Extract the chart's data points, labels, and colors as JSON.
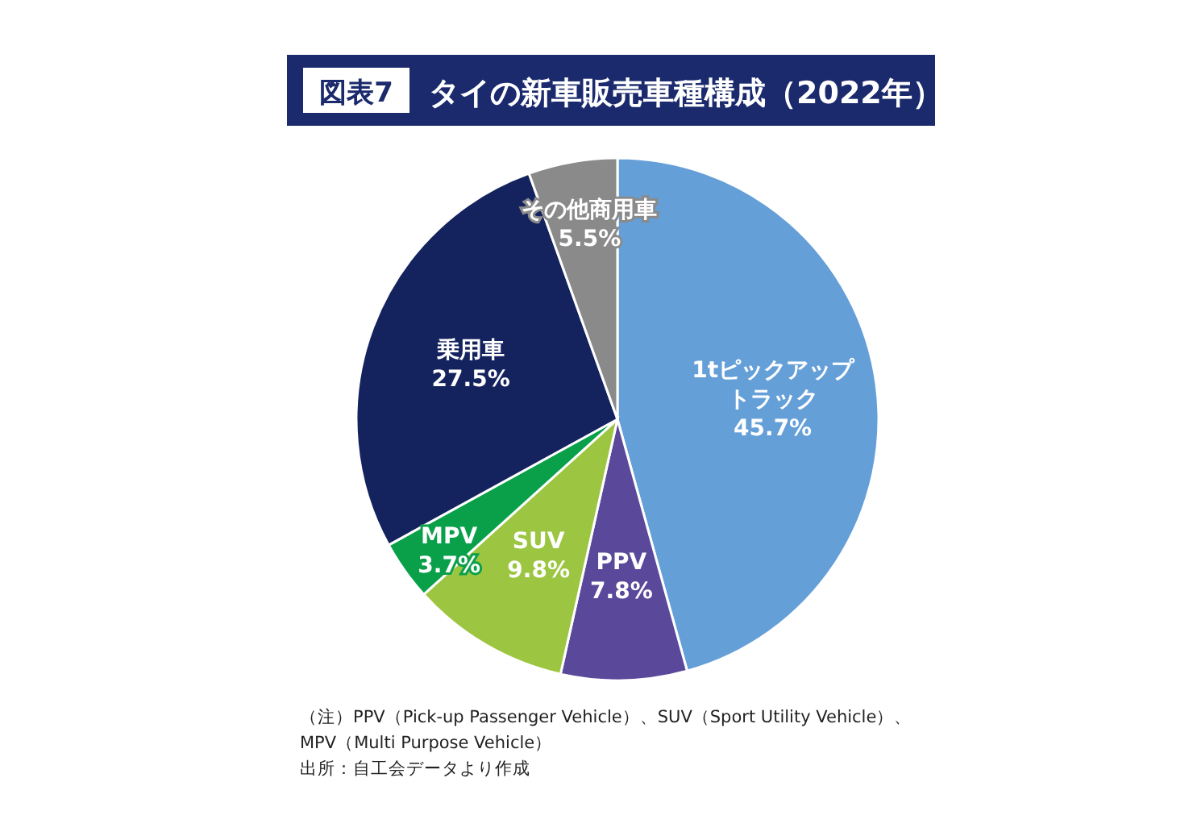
{
  "chart_data": {
    "type": "pie",
    "title": "タイの新車販売車種構成（2022年）",
    "categories": [
      "1tピックアップトラック",
      "PPV",
      "SUV",
      "MPV",
      "乗用車",
      "その他商用車"
    ],
    "values": [
      45.7,
      7.8,
      9.8,
      3.7,
      27.5,
      5.5
    ],
    "colors": [
      "#659fd8",
      "#5a489a",
      "#9cc641",
      "#0aa04a",
      "#14235e",
      "#8a8a8a"
    ],
    "value_labels": [
      "45.7%",
      "7.8%",
      "9.8%",
      "3.7%",
      "27.5%",
      "5.5%"
    ],
    "annotations": [
      "図表7",
      "（注）PPV（Pick-up Passenger Vehicle）、SUV（Sport Utility Vehicle）、",
      "MPV（Multi Purpose Vehicle）",
      "出所：自工会データより作成"
    ]
  }
}
